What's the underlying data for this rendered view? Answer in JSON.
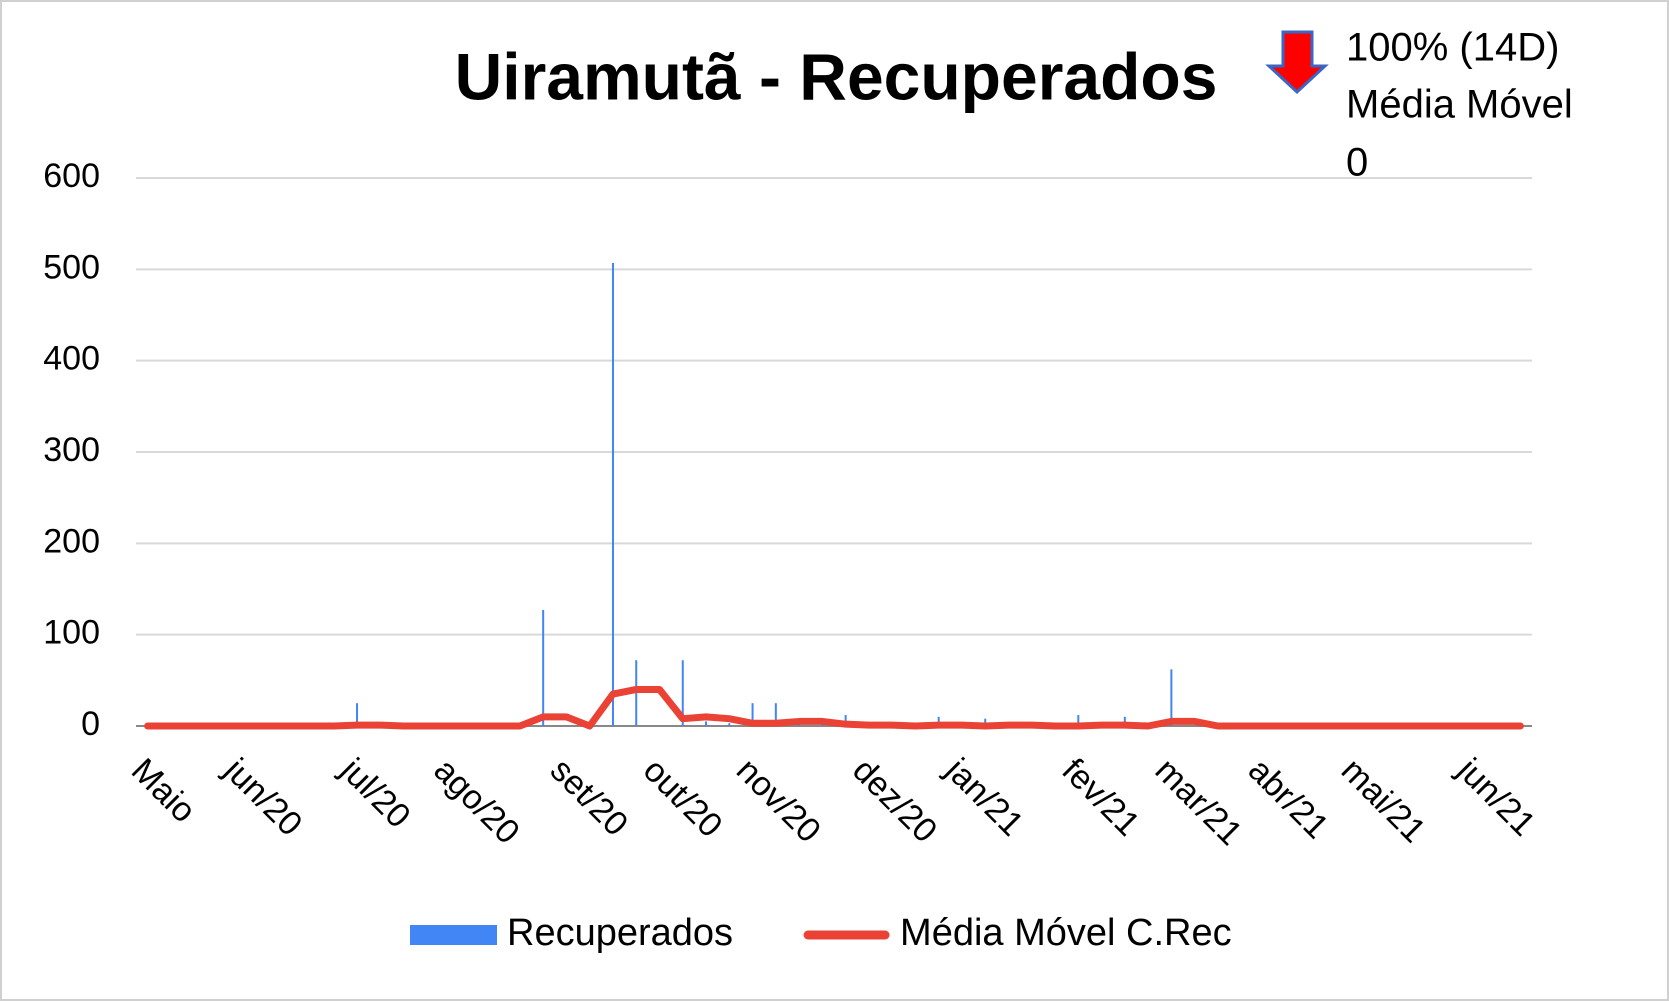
{
  "chart_data": {
    "type": "bar_line",
    "title": "Uiramutã - Recuperados",
    "annotation": [
      "100% (14D)",
      "Média Móvel",
      "0"
    ],
    "categories": [
      "Maio",
      null,
      null,
      null,
      "jun/20",
      null,
      null,
      null,
      null,
      "jul/20",
      null,
      null,
      null,
      "ago/20",
      null,
      null,
      null,
      null,
      "set/20",
      null,
      null,
      null,
      "out/20",
      null,
      null,
      null,
      "nov/20",
      null,
      null,
      null,
      null,
      "dez/20",
      null,
      null,
      null,
      "jan/21",
      null,
      null,
      null,
      null,
      "fev/21",
      null,
      null,
      null,
      "mar/21",
      null,
      null,
      null,
      "abr/21",
      null,
      null,
      null,
      "mai/21",
      null,
      null,
      null,
      null,
      "jun/21",
      null,
      null
    ],
    "series": [
      {
        "name": "Recuperados",
        "kind": "bar",
        "color": "#4285f4",
        "values": [
          0,
          0,
          0,
          0,
          0,
          0,
          0,
          0,
          0,
          25,
          0,
          0,
          0,
          0,
          0,
          0,
          0,
          127,
          0,
          0,
          507,
          72,
          0,
          72,
          5,
          3,
          25,
          25,
          4,
          3,
          12,
          2,
          0,
          0,
          10,
          0,
          8,
          0,
          0,
          0,
          12,
          3,
          10,
          0,
          62,
          0,
          0,
          0,
          0,
          0,
          0,
          0,
          0,
          0,
          0,
          0,
          0,
          0,
          0,
          0
        ]
      },
      {
        "name": "Média Móvel C.Rec",
        "kind": "line",
        "color": "#ea4335",
        "values": [
          0,
          0,
          0,
          0,
          0,
          0,
          0,
          0,
          0,
          1,
          1,
          0,
          0,
          0,
          0,
          0,
          0,
          10,
          10,
          0,
          35,
          40,
          40,
          8,
          10,
          8,
          3,
          3,
          5,
          5,
          2,
          1,
          1,
          0,
          1,
          1,
          0,
          1,
          1,
          0,
          0,
          1,
          1,
          0,
          5,
          5,
          0,
          0,
          0,
          0,
          0,
          0,
          0,
          0,
          0,
          0,
          0,
          0,
          0,
          0
        ]
      }
    ],
    "ylim": [
      0,
      600
    ],
    "yticks": [
      0,
      100,
      200,
      300,
      400,
      500,
      600
    ],
    "grid": true,
    "legend": "bottom"
  }
}
